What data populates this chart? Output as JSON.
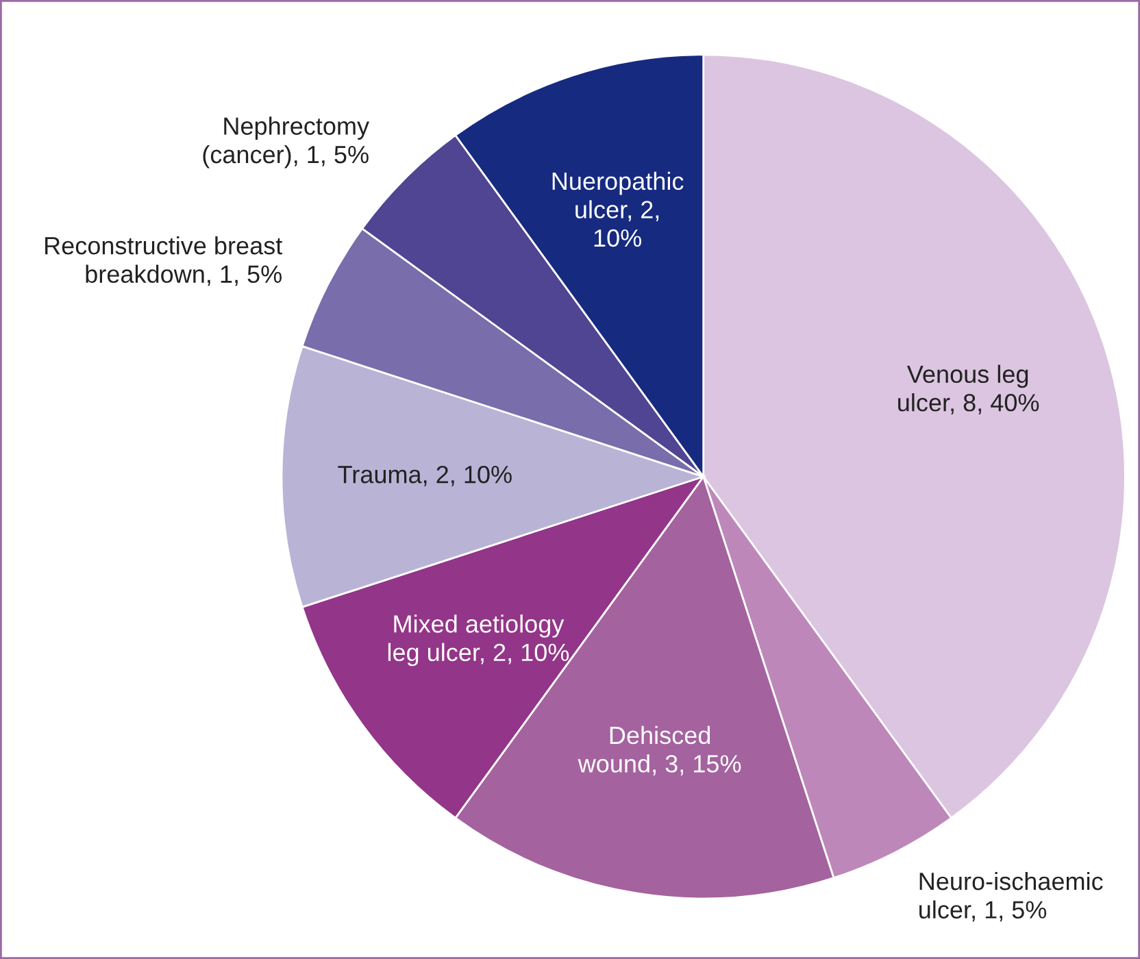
{
  "chart_data": {
    "type": "pie",
    "categories": [
      "Venous leg\nulcer",
      "Neuro-ischaemic\nulcer",
      "Dehisced\nwound",
      "Mixed aetiology\nleg ulcer",
      "Trauma",
      "Reconstructive breast\nbreakdown",
      "Nephrectomy\n(cancer)",
      "Nueropathic\nulcer"
    ],
    "values": [
      8,
      1,
      3,
      2,
      2,
      1,
      1,
      2
    ],
    "value_labels": [
      "8, 40%",
      "1, 5%",
      "3, 15%",
      "2, 10%",
      "2, 10%",
      "1, 5%",
      "1, 5%",
      "2,\n10%"
    ],
    "colors": [
      "#dbc5e0",
      "#bd88b9",
      "#a4629f",
      "#933589",
      "#b9b3d6",
      "#7a6dab",
      "#4f4592",
      "#162a80"
    ]
  }
}
